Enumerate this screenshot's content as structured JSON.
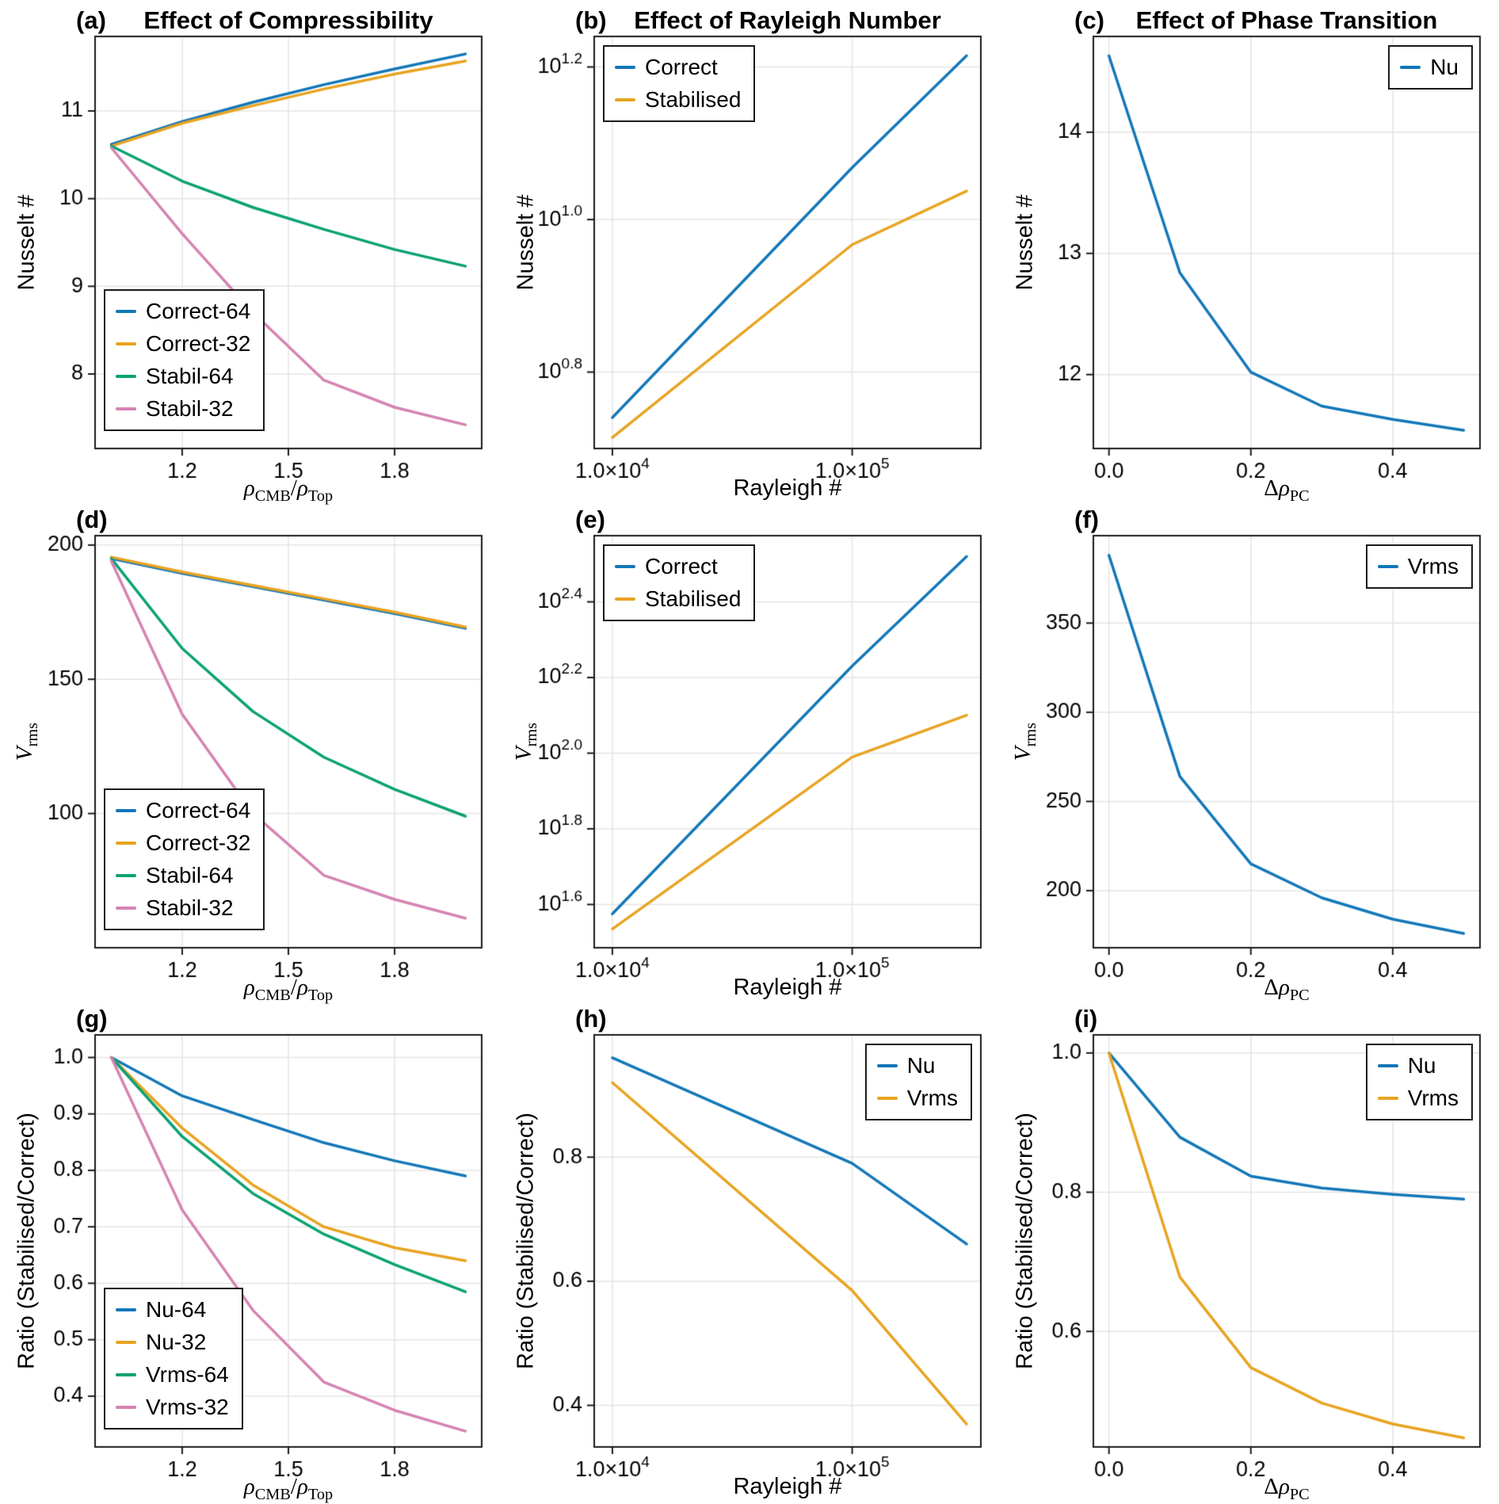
{
  "colors": {
    "blue": "#1277b8",
    "orange": "#e8a321",
    "green": "#0aa173",
    "pink": "#d583b2",
    "grid": "#e4e4e4",
    "spine": "#1a1a1a",
    "text": "#000000"
  },
  "chart_data": [
    {
      "letter": "(a)",
      "title": "Effect of Compressibility",
      "type": "line",
      "xscale": "linear",
      "xlim": [
        0.954,
        2.046
      ],
      "ylim": [
        7.15,
        11.85
      ],
      "xticks": [
        {
          "v": 1.2,
          "label": "1.2"
        },
        {
          "v": 1.5,
          "label": "1.5"
        },
        {
          "v": 1.8,
          "label": "1.8"
        }
      ],
      "yticks": [
        {
          "v": 8,
          "label": "8"
        },
        {
          "v": 9,
          "label": "9"
        },
        {
          "v": 10,
          "label": "10"
        },
        {
          "v": 11,
          "label": "11"
        }
      ],
      "xlabel": {
        "math": true,
        "segs": [
          {
            "t": "ρ",
            "i": true
          },
          {
            "t": "CMB",
            "sub": true
          },
          {
            "t": "/"
          },
          {
            "t": "ρ",
            "i": true
          },
          {
            "t": "Top",
            "sub": true
          }
        ]
      },
      "ylabel": {
        "segs": [
          {
            "t": "Nusselt #"
          }
        ]
      },
      "x": [
        1.0,
        1.2,
        1.4,
        1.6,
        1.8,
        2.0
      ],
      "series": [
        {
          "name": "Correct-64",
          "color": "blue",
          "y": [
            10.62,
            10.88,
            11.1,
            11.3,
            11.48,
            11.65
          ]
        },
        {
          "name": "Correct-32",
          "color": "orange",
          "y": [
            10.6,
            10.86,
            11.06,
            11.25,
            11.42,
            11.57
          ]
        },
        {
          "name": "Stabil-64",
          "color": "green",
          "y": [
            10.6,
            10.2,
            9.9,
            9.65,
            9.42,
            9.23
          ]
        },
        {
          "name": "Stabil-32",
          "color": "pink",
          "y": [
            10.58,
            9.6,
            8.7,
            7.93,
            7.62,
            7.42
          ]
        }
      ],
      "legend": {
        "pos": "bl"
      }
    },
    {
      "letter": "(b)",
      "title": "Effect of Rayleigh Number",
      "type": "line",
      "xscale": "log",
      "xlim": [
        8400,
        344000
      ],
      "ylim": [
        5.01,
        17.38
      ],
      "yscale": "log",
      "xticks": [
        {
          "v": 10000,
          "label": "1.0×10^{4}"
        },
        {
          "v": 100000,
          "label": "1.0×10^{5}"
        }
      ],
      "yticks": [
        {
          "v": 6.31,
          "label": "10^{0.8}"
        },
        {
          "v": 10.0,
          "label": "10^{1.0}"
        },
        {
          "v": 15.85,
          "label": "10^{1.2}"
        }
      ],
      "xlabel": {
        "segs": [
          {
            "t": "Rayleigh #"
          }
        ]
      },
      "ylabel": {
        "segs": [
          {
            "t": "Nusselt #"
          }
        ]
      },
      "x": [
        10000,
        100000,
        300000
      ],
      "series": [
        {
          "name": "Correct",
          "color": "blue",
          "y": [
            5.5,
            11.7,
            16.4
          ]
        },
        {
          "name": "Stabilised",
          "color": "orange",
          "y": [
            5.18,
            9.27,
            10.9
          ]
        }
      ],
      "legend": {
        "pos": "tl"
      }
    },
    {
      "letter": "(c)",
      "title": "Effect of Phase Transition",
      "type": "line",
      "xscale": "linear",
      "xlim": [
        -0.022,
        0.523
      ],
      "ylim": [
        11.39,
        14.79
      ],
      "xticks": [
        {
          "v": 0.0,
          "label": "0.0"
        },
        {
          "v": 0.2,
          "label": "0.2"
        },
        {
          "v": 0.4,
          "label": "0.4"
        }
      ],
      "yticks": [
        {
          "v": 12,
          "label": "12"
        },
        {
          "v": 13,
          "label": "13"
        },
        {
          "v": 14,
          "label": "14"
        }
      ],
      "xlabel": {
        "math": true,
        "segs": [
          {
            "t": "Δ"
          },
          {
            "t": "ρ",
            "i": true
          },
          {
            "t": "PC",
            "sub": true
          }
        ]
      },
      "ylabel": {
        "segs": [
          {
            "t": "Nusselt #"
          }
        ]
      },
      "x": [
        0.0,
        0.1,
        0.2,
        0.3,
        0.4,
        0.5
      ],
      "series": [
        {
          "name": "Nu",
          "color": "blue",
          "y": [
            14.63,
            12.84,
            12.02,
            11.74,
            11.63,
            11.54
          ]
        }
      ],
      "legend": {
        "pos": "tr"
      }
    },
    {
      "letter": "(d)",
      "title": "",
      "type": "line",
      "xscale": "linear",
      "xlim": [
        0.954,
        2.046
      ],
      "ylim": [
        50,
        203.5
      ],
      "xticks": [
        {
          "v": 1.2,
          "label": "1.2"
        },
        {
          "v": 1.5,
          "label": "1.5"
        },
        {
          "v": 1.8,
          "label": "1.8"
        }
      ],
      "yticks": [
        {
          "v": 100,
          "label": "100"
        },
        {
          "v": 150,
          "label": "150"
        },
        {
          "v": 200,
          "label": "200"
        }
      ],
      "xlabel": {
        "math": true,
        "segs": [
          {
            "t": "ρ",
            "i": true
          },
          {
            "t": "CMB",
            "sub": true
          },
          {
            "t": "/"
          },
          {
            "t": "ρ",
            "i": true
          },
          {
            "t": "Top",
            "sub": true
          }
        ]
      },
      "ylabel": {
        "math": true,
        "segs": [
          {
            "t": "V",
            "i": true
          },
          {
            "t": "rms",
            "sub": true
          }
        ]
      },
      "x": [
        1.0,
        1.2,
        1.4,
        1.6,
        1.8,
        2.0
      ],
      "series": [
        {
          "name": "Correct-64",
          "color": "blue",
          "y": [
            195,
            189.5,
            184.5,
            179.5,
            174.5,
            169
          ]
        },
        {
          "name": "Correct-32",
          "color": "orange",
          "y": [
            195.5,
            190,
            185,
            180,
            175,
            169.5
          ]
        },
        {
          "name": "Stabil-64",
          "color": "green",
          "y": [
            195,
            161.5,
            138,
            121,
            109,
            99
          ]
        },
        {
          "name": "Stabil-32",
          "color": "pink",
          "y": [
            194,
            137,
            100,
            77,
            68,
            61
          ]
        }
      ],
      "legend": {
        "pos": "bl"
      }
    },
    {
      "letter": "(e)",
      "title": "",
      "type": "line",
      "xscale": "log",
      "xlim": [
        8400,
        344000
      ],
      "ylim": [
        30.6,
        375.8
      ],
      "yscale": "log",
      "xticks": [
        {
          "v": 10000,
          "label": "1.0×10^{4}"
        },
        {
          "v": 100000,
          "label": "1.0×10^{5}"
        }
      ],
      "yticks": [
        {
          "v": 39.81,
          "label": "10^{1.6}"
        },
        {
          "v": 63.1,
          "label": "10^{1.8}"
        },
        {
          "v": 100,
          "label": "10^{2.0}"
        },
        {
          "v": 158.49,
          "label": "10^{2.2}"
        },
        {
          "v": 251.19,
          "label": "10^{2.4}"
        }
      ],
      "xlabel": {
        "segs": [
          {
            "t": "Rayleigh #"
          }
        ]
      },
      "ylabel": {
        "math": true,
        "segs": [
          {
            "t": "V",
            "i": true
          },
          {
            "t": "rms",
            "sub": true
          }
        ]
      },
      "x": [
        10000,
        100000,
        300000
      ],
      "series": [
        {
          "name": "Correct",
          "color": "blue",
          "y": [
            37.6,
            170,
            331
          ]
        },
        {
          "name": "Stabilised",
          "color": "orange",
          "y": [
            34.3,
            97.7,
            126
          ]
        }
      ],
      "legend": {
        "pos": "tl"
      }
    },
    {
      "letter": "(f)",
      "title": "",
      "type": "line",
      "xscale": "linear",
      "xlim": [
        -0.022,
        0.523
      ],
      "ylim": [
        168,
        399
      ],
      "xticks": [
        {
          "v": 0.0,
          "label": "0.0"
        },
        {
          "v": 0.2,
          "label": "0.2"
        },
        {
          "v": 0.4,
          "label": "0.4"
        }
      ],
      "yticks": [
        {
          "v": 200,
          "label": "200"
        },
        {
          "v": 250,
          "label": "250"
        },
        {
          "v": 300,
          "label": "300"
        },
        {
          "v": 350,
          "label": "350"
        }
      ],
      "xlabel": {
        "math": true,
        "segs": [
          {
            "t": "Δ"
          },
          {
            "t": "ρ",
            "i": true
          },
          {
            "t": "PC",
            "sub": true
          }
        ]
      },
      "ylabel": {
        "math": true,
        "segs": [
          {
            "t": "V",
            "i": true
          },
          {
            "t": "rms",
            "sub": true
          }
        ]
      },
      "x": [
        0.0,
        0.1,
        0.2,
        0.3,
        0.4,
        0.5
      ],
      "series": [
        {
          "name": "Vrms",
          "color": "blue",
          "y": [
            388,
            264,
            215,
            196,
            184,
            176
          ]
        }
      ],
      "legend": {
        "pos": "tr"
      }
    },
    {
      "letter": "(g)",
      "title": "",
      "type": "line",
      "xscale": "linear",
      "xlim": [
        0.954,
        2.046
      ],
      "ylim": [
        0.31,
        1.04
      ],
      "xticks": [
        {
          "v": 1.2,
          "label": "1.2"
        },
        {
          "v": 1.5,
          "label": "1.5"
        },
        {
          "v": 1.8,
          "label": "1.8"
        }
      ],
      "yticks": [
        {
          "v": 0.4,
          "label": "0.4"
        },
        {
          "v": 0.5,
          "label": "0.5"
        },
        {
          "v": 0.6,
          "label": "0.6"
        },
        {
          "v": 0.7,
          "label": "0.7"
        },
        {
          "v": 0.8,
          "label": "0.8"
        },
        {
          "v": 0.9,
          "label": "0.9"
        },
        {
          "v": 1.0,
          "label": "1.0"
        }
      ],
      "xlabel": {
        "math": true,
        "segs": [
          {
            "t": "ρ",
            "i": true
          },
          {
            "t": "CMB",
            "sub": true
          },
          {
            "t": "/"
          },
          {
            "t": "ρ",
            "i": true
          },
          {
            "t": "Top",
            "sub": true
          }
        ]
      },
      "ylabel": {
        "segs": [
          {
            "t": "Ratio (Stabilised/Correct)"
          }
        ]
      },
      "x": [
        1.0,
        1.2,
        1.4,
        1.6,
        1.8,
        2.0
      ],
      "series": [
        {
          "name": "Nu-64",
          "color": "blue",
          "y": [
            1.0,
            0.932,
            0.89,
            0.849,
            0.817,
            0.79
          ]
        },
        {
          "name": "Nu-32",
          "color": "orange",
          "y": [
            1.0,
            0.875,
            0.774,
            0.7,
            0.663,
            0.64
          ]
        },
        {
          "name": "Vrms-64",
          "color": "green",
          "y": [
            1.0,
            0.86,
            0.759,
            0.687,
            0.633,
            0.585
          ]
        },
        {
          "name": "Vrms-32",
          "color": "pink",
          "y": [
            1.0,
            0.73,
            0.552,
            0.425,
            0.375,
            0.338
          ]
        }
      ],
      "legend": {
        "pos": "bl"
      }
    },
    {
      "letter": "(h)",
      "title": "",
      "type": "line",
      "xscale": "log",
      "xlim": [
        8400,
        344000
      ],
      "ylim": [
        0.333,
        0.997
      ],
      "xticks": [
        {
          "v": 10000,
          "label": "1.0×10^{4}"
        },
        {
          "v": 100000,
          "label": "1.0×10^{5}"
        }
      ],
      "yticks": [
        {
          "v": 0.4,
          "label": "0.4"
        },
        {
          "v": 0.6,
          "label": "0.6"
        },
        {
          "v": 0.8,
          "label": "0.8"
        }
      ],
      "xlabel": {
        "segs": [
          {
            "t": "Rayleigh #"
          }
        ]
      },
      "ylabel": {
        "segs": [
          {
            "t": "Ratio (Stabilised/Correct)"
          }
        ]
      },
      "x": [
        10000,
        100000,
        300000
      ],
      "series": [
        {
          "name": "Nu",
          "color": "blue",
          "y": [
            0.96,
            0.79,
            0.66
          ]
        },
        {
          "name": "Vrms",
          "color": "orange",
          "y": [
            0.92,
            0.585,
            0.37
          ]
        }
      ],
      "legend": {
        "pos": "tr"
      }
    },
    {
      "letter": "(i)",
      "title": "",
      "type": "line",
      "xscale": "linear",
      "xlim": [
        -0.022,
        0.523
      ],
      "ylim": [
        0.434,
        1.026
      ],
      "xticks": [
        {
          "v": 0.0,
          "label": "0.0"
        },
        {
          "v": 0.2,
          "label": "0.2"
        },
        {
          "v": 0.4,
          "label": "0.4"
        }
      ],
      "yticks": [
        {
          "v": 0.6,
          "label": "0.6"
        },
        {
          "v": 0.8,
          "label": "0.8"
        },
        {
          "v": 1.0,
          "label": "1.0"
        }
      ],
      "xlabel": {
        "math": true,
        "segs": [
          {
            "t": "Δ"
          },
          {
            "t": "ρ",
            "i": true
          },
          {
            "t": "PC",
            "sub": true
          }
        ]
      },
      "ylabel": {
        "segs": [
          {
            "t": "Ratio (Stabilised/Correct)"
          }
        ]
      },
      "x": [
        0.0,
        0.1,
        0.2,
        0.3,
        0.4,
        0.5
      ],
      "series": [
        {
          "name": "Nu",
          "color": "blue",
          "y": [
            1.0,
            0.879,
            0.823,
            0.806,
            0.797,
            0.79
          ]
        },
        {
          "name": "Vrms",
          "color": "orange",
          "y": [
            1.0,
            0.678,
            0.548,
            0.497,
            0.467,
            0.447
          ]
        }
      ],
      "legend": {
        "pos": "tr"
      }
    }
  ]
}
